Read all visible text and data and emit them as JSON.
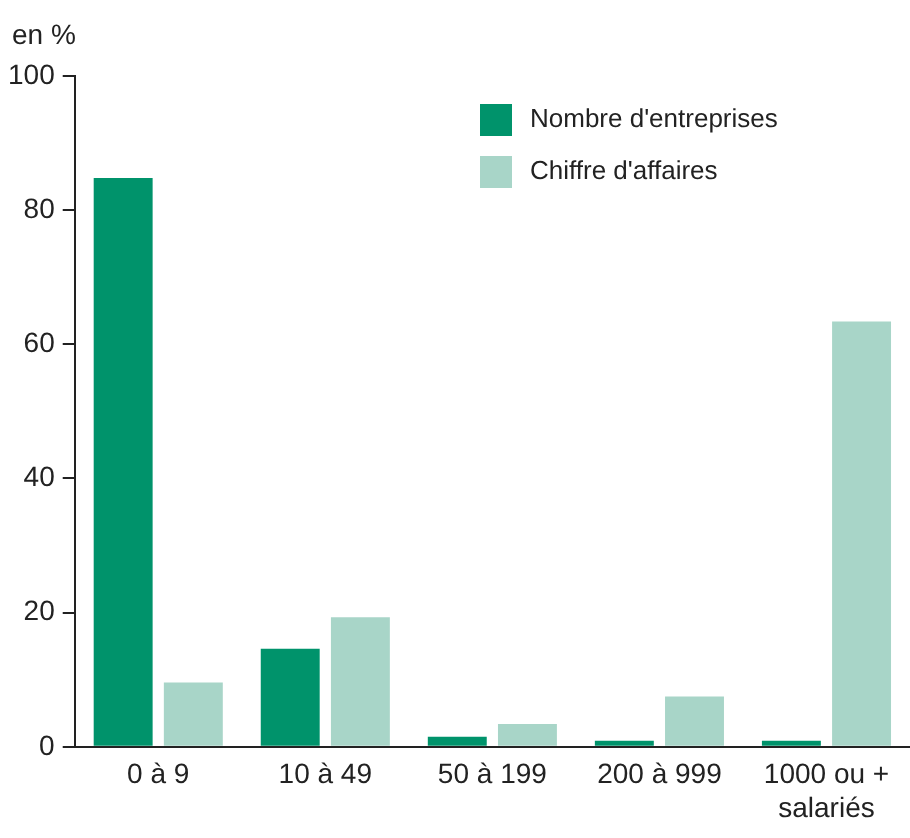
{
  "chart_data": {
    "type": "bar",
    "ylabel": "en %",
    "categories": [
      "0 à 9",
      "10 à 49",
      "50 à 199",
      "200 à 999",
      "1000 ou +\nsalariés"
    ],
    "series": [
      {
        "name": "Nombre d'entreprises",
        "color": "#00936b",
        "values": [
          84.8,
          14.6,
          1.5,
          0.9,
          0.9
        ]
      },
      {
        "name": "Chiffre d'affaires",
        "color": "#a8d5c8",
        "values": [
          9.6,
          19.3,
          3.4,
          7.5,
          63.4
        ]
      }
    ],
    "ylim": [
      0,
      100
    ],
    "yticks": [
      0,
      20,
      40,
      60,
      80,
      100
    ],
    "grid": false,
    "legend": "top right"
  }
}
